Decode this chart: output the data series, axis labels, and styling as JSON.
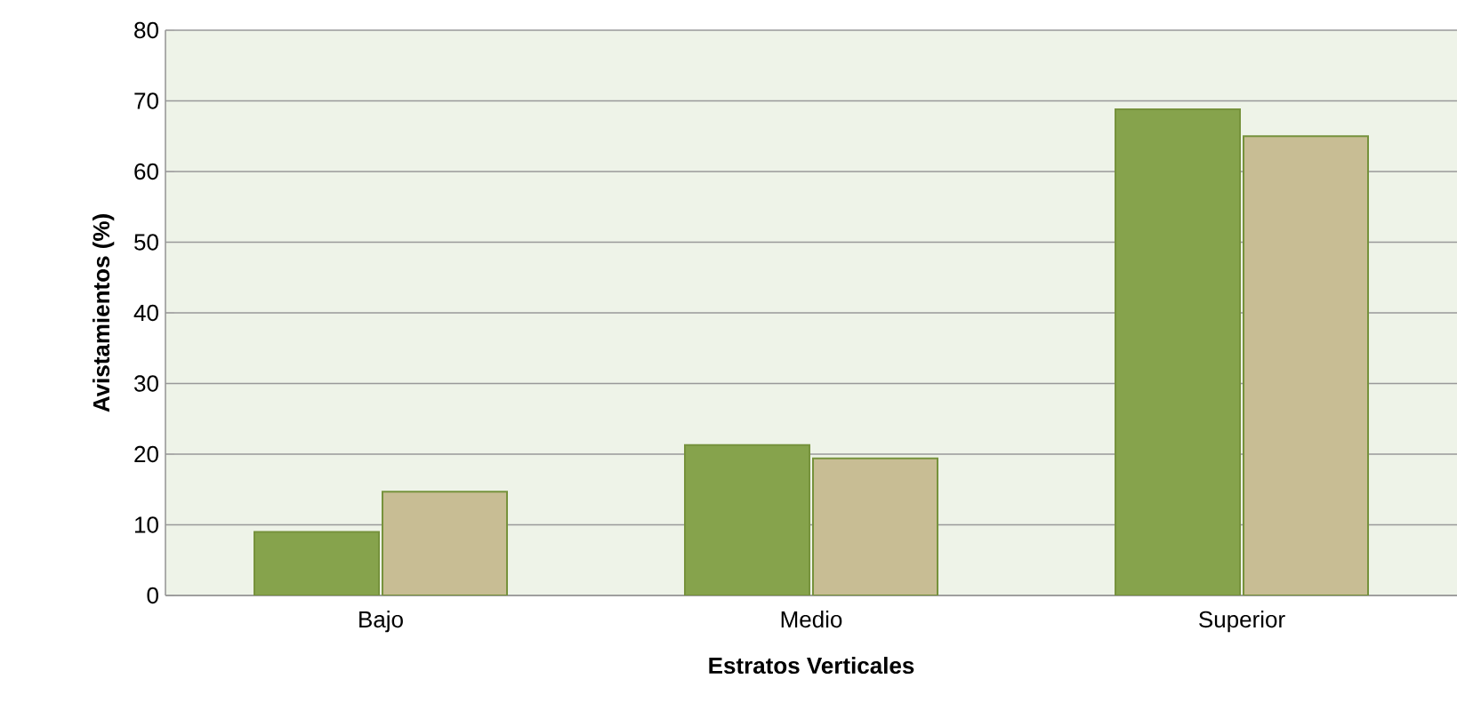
{
  "chart_data": {
    "type": "bar",
    "xlabel": "Estratos Verticales",
    "ylabel": "Avistamientos (%)",
    "categories": [
      "Bajo",
      "Medio",
      "Superior"
    ],
    "series": [
      {
        "color": "#86a34c",
        "values": [
          9,
          21.3,
          68.8
        ]
      },
      {
        "color": "#c8bd94",
        "values": [
          14.7,
          19.4,
          65
        ]
      }
    ],
    "ylim": [
      0,
      80
    ],
    "yticks": [
      0,
      10,
      20,
      30,
      40,
      50,
      60,
      70,
      80
    ],
    "grid": "y"
  }
}
